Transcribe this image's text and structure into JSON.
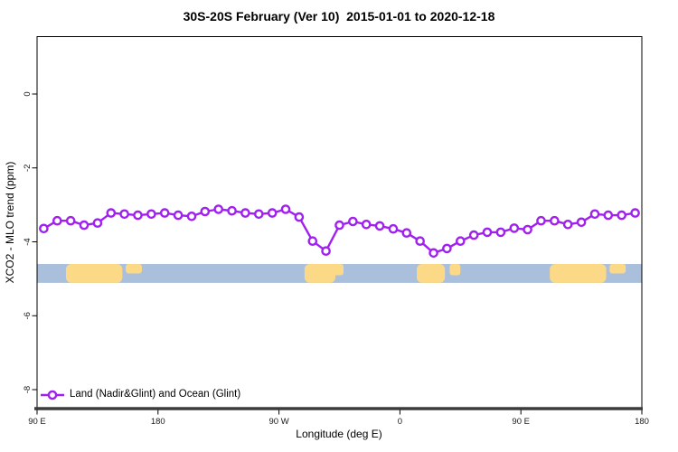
{
  "title": "30S-20S February (Ver 10)  2015-01-01 to 2020-12-18",
  "colors": {
    "line": "#A020F0",
    "ocean": "#A9BFDC",
    "land": "#FCD987",
    "axis_heavy": "#3C3C3C",
    "box": "#000000",
    "tick_text": "#1a1a1a"
  },
  "chart_data": {
    "type": "line",
    "title": "30S-20S February (Ver 10)  2015-01-01 to 2020-12-18",
    "xlabel": "Longitude (deg E)",
    "ylabel": "XCO2 - MLO trend (ppm)",
    "xlim": [
      90,
      540
    ],
    "ylim": [
      -8.53,
      1.55
    ],
    "grid": false,
    "x_ticks": [
      {
        "deg": 90,
        "label": "90 E"
      },
      {
        "deg": 180,
        "label": "180"
      },
      {
        "deg": 270,
        "label": "90 W"
      },
      {
        "deg": 360,
        "label": "0"
      },
      {
        "deg": 450,
        "label": "90 E"
      },
      {
        "deg": 540,
        "label": "180"
      }
    ],
    "y_ticks": [
      {
        "value": 0,
        "label": "0"
      },
      {
        "value": -2,
        "label": "-2"
      },
      {
        "value": -4,
        "label": "-4"
      },
      {
        "value": -6,
        "label": "-6"
      },
      {
        "value": -8,
        "label": "-8"
      }
    ],
    "legend": {
      "position": "bottom-left",
      "entries": [
        "Land (Nadir&Glint) and Ocean (Glint)"
      ]
    },
    "series": [
      {
        "name": "Land (Nadir&Glint) and Ocean (Glint)",
        "color": "#A020F0",
        "marker": "open-circle",
        "x": [
          95,
          105,
          115,
          125,
          135,
          145,
          155,
          165,
          175,
          185,
          195,
          205,
          215,
          225,
          235,
          245,
          255,
          265,
          275,
          285,
          295,
          305,
          315,
          325,
          335,
          345,
          355,
          365,
          375,
          385,
          395,
          405,
          415,
          425,
          435,
          445,
          455,
          465,
          475,
          485,
          495,
          505,
          515,
          525,
          535
        ],
        "y": [
          -3.64,
          -3.43,
          -3.43,
          -3.55,
          -3.49,
          -3.22,
          -3.25,
          -3.28,
          -3.25,
          -3.22,
          -3.28,
          -3.31,
          -3.18,
          -3.12,
          -3.16,
          -3.22,
          -3.25,
          -3.22,
          -3.12,
          -3.33,
          -3.98,
          -4.25,
          -3.55,
          -3.45,
          -3.53,
          -3.57,
          -3.65,
          -3.76,
          -3.98,
          -4.3,
          -4.18,
          -3.98,
          -3.82,
          -3.74,
          -3.74,
          -3.63,
          -3.67,
          -3.43,
          -3.43,
          -3.53,
          -3.47,
          -3.25,
          -3.28,
          -3.28,
          -3.22
        ]
      }
    ],
    "map_strip": {
      "description": "land-ocean strip for 30S-20S",
      "y_top_ppm": -4.6,
      "y_bottom_ppm": -5.11,
      "ocean_color": "#A9BFDC",
      "land_color": "#FCD987",
      "land_patches": [
        {
          "x0": 111.5,
          "x1": 153.5,
          "frac": 1.0
        },
        {
          "x0": 156.0,
          "x1": 168.0,
          "frac": 0.5
        },
        {
          "x0": 289.0,
          "x1": 312.0,
          "frac": 1.0
        },
        {
          "x0": 305.0,
          "x1": 318.0,
          "frac": 0.6
        },
        {
          "x0": 372.5,
          "x1": 393.5,
          "frac": 1.0
        },
        {
          "x0": 397.0,
          "x1": 405.0,
          "frac": 0.6
        },
        {
          "x0": 471.5,
          "x1": 513.5,
          "frac": 1.0
        },
        {
          "x0": 516.0,
          "x1": 528.0,
          "frac": 0.5
        }
      ]
    }
  }
}
